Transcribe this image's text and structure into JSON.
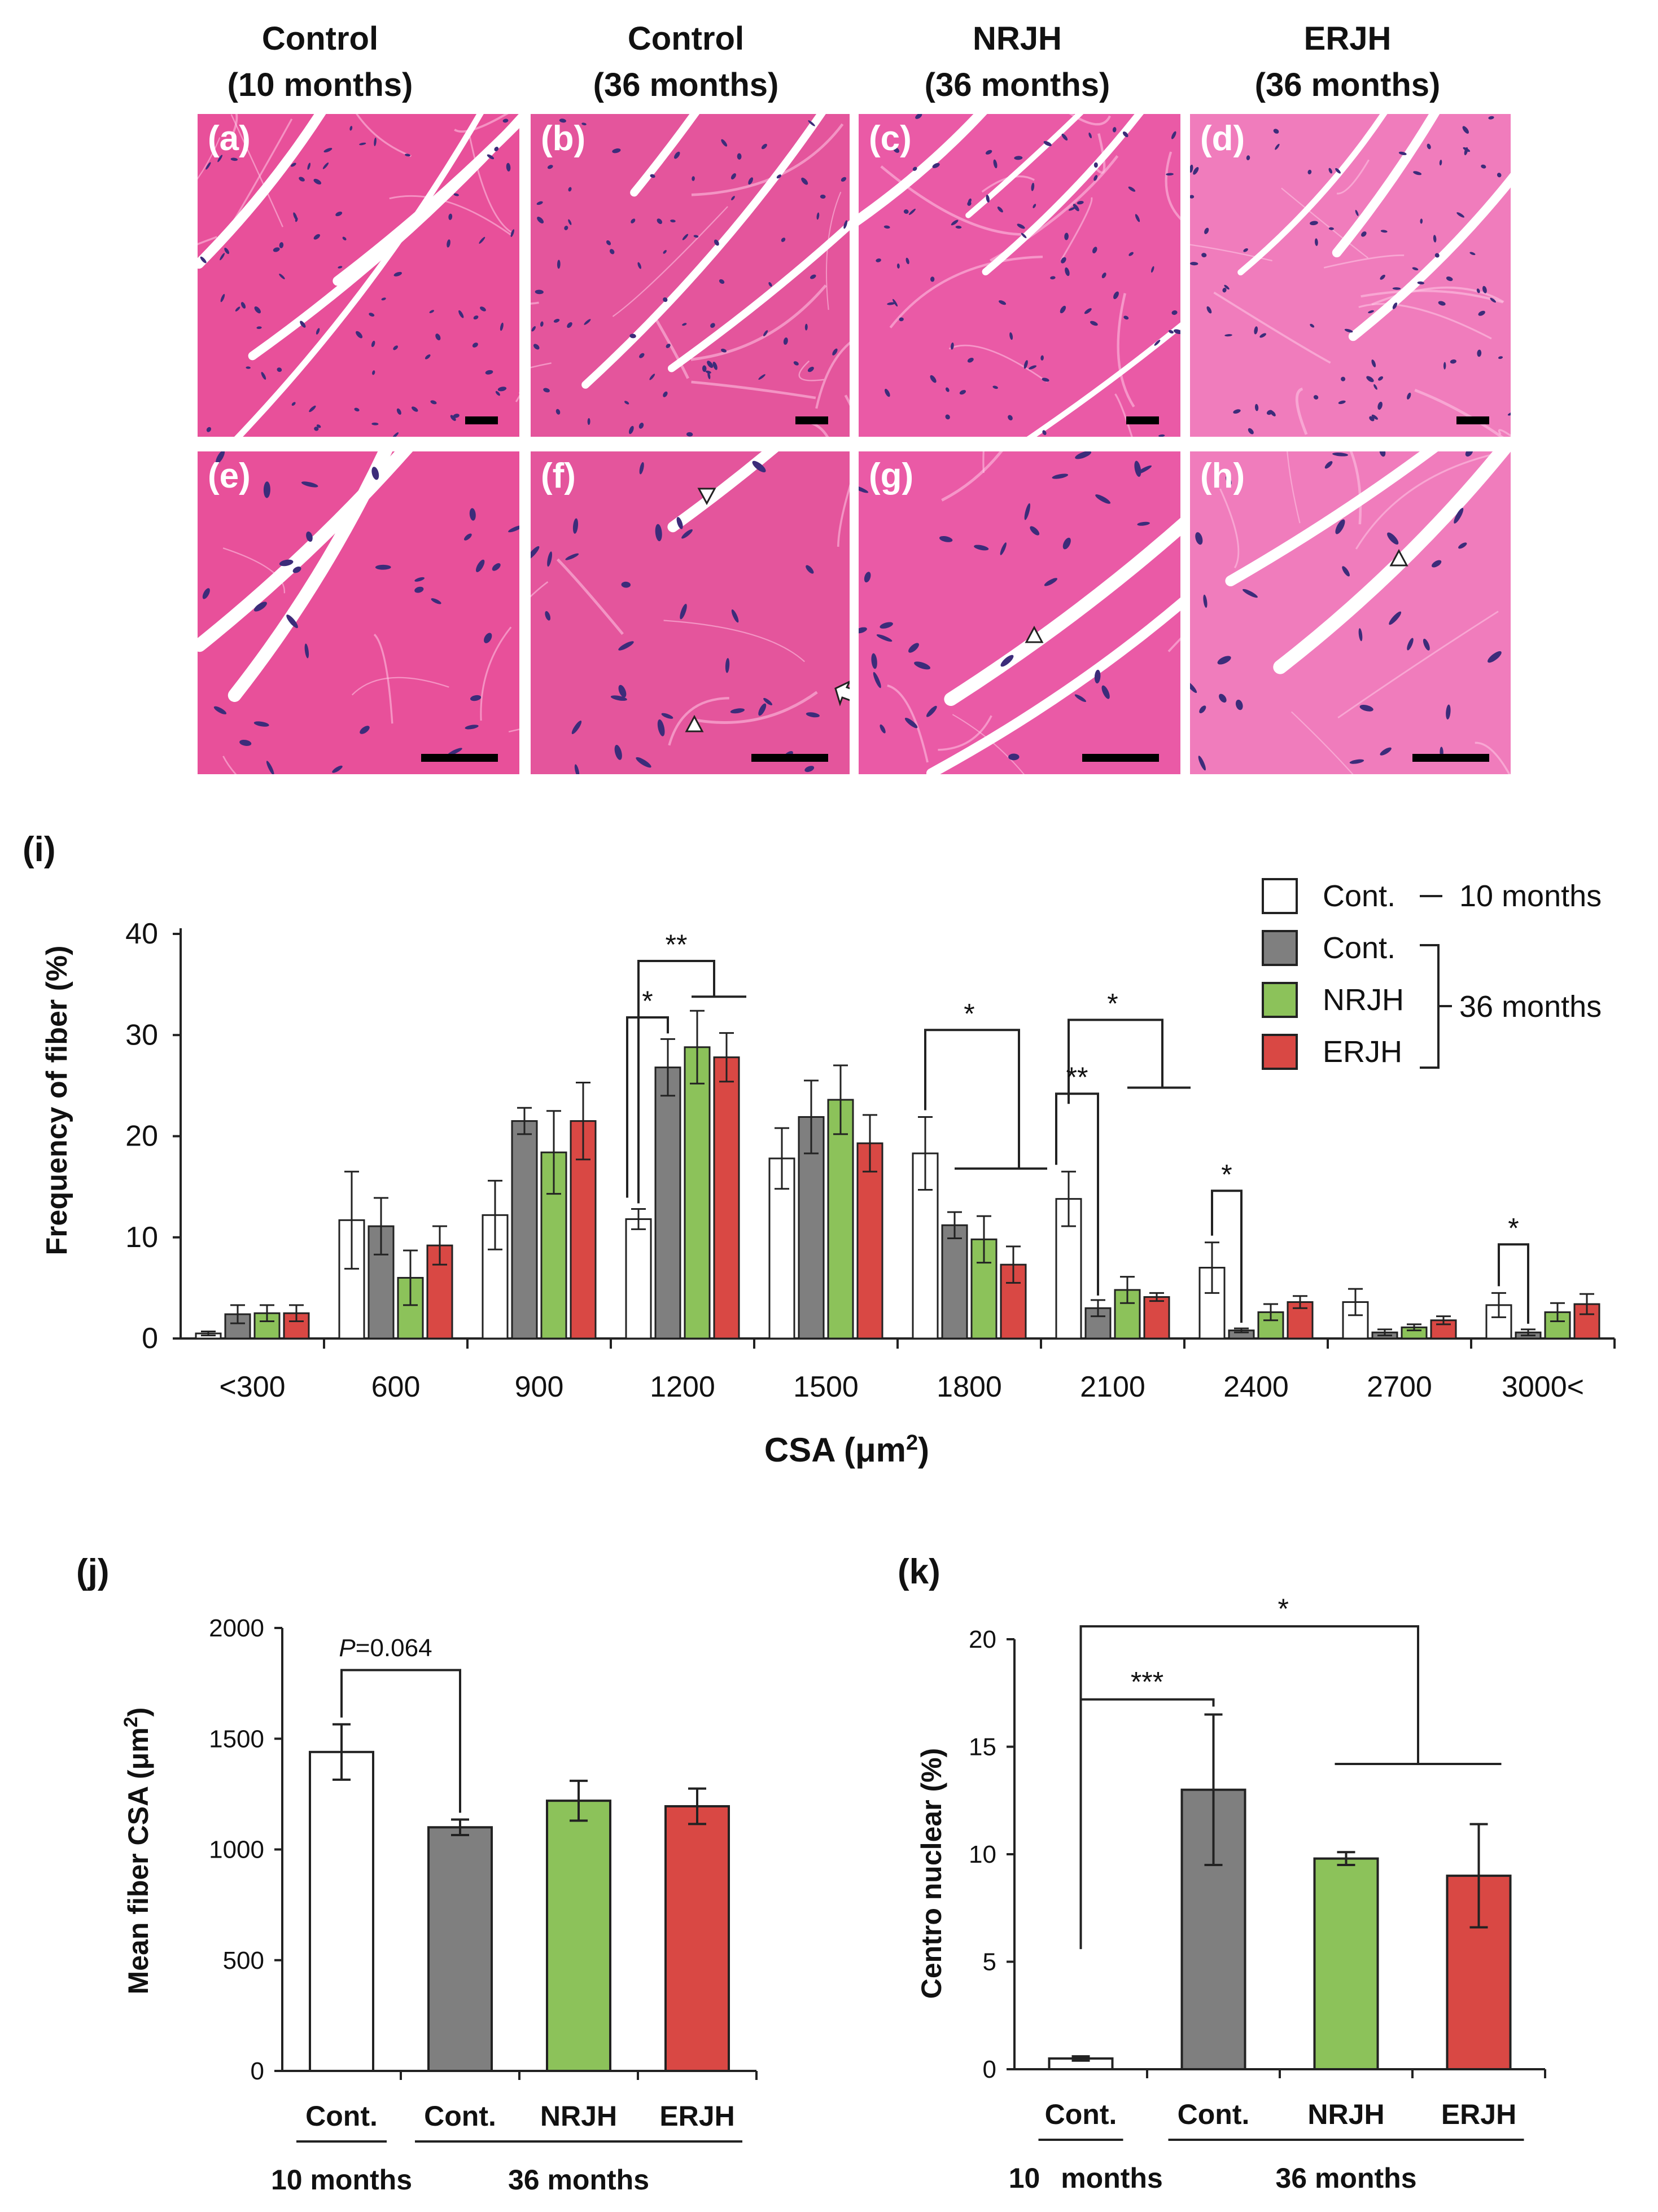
{
  "micrograph_headers": [
    {
      "line1": "Control",
      "line2": "(10 months)"
    },
    {
      "line1": "Control",
      "line2": "(36 months)"
    },
    {
      "line1": "NRJH",
      "line2": "(36 months)"
    },
    {
      "line1": "ERJH",
      "line2": "(36 months)"
    }
  ],
  "micrograph_panels": [
    {
      "label": "(a)",
      "bg": "#e8509a"
    },
    {
      "label": "(b)",
      "bg": "#e4559c"
    },
    {
      "label": "(c)",
      "bg": "#ea5aa6"
    },
    {
      "label": "(d)",
      "bg": "#f07cbc"
    },
    {
      "label": "(e)",
      "bg": "#e8509a"
    },
    {
      "label": "(f)",
      "bg": "#e4559c"
    },
    {
      "label": "(g)",
      "bg": "#ea5aa6"
    },
    {
      "label": "(h)",
      "bg": "#f07cbc"
    }
  ],
  "colors": {
    "cont10": "#ffffff",
    "cont36": "#7f7f7f",
    "nrjh": "#8cc25a",
    "erjh": "#d94844",
    "nucleus": "#3c2c7a"
  },
  "chart_data": [
    {
      "id": "i",
      "panel_label": "(i)",
      "type": "bar",
      "title": "",
      "xlabel": "CSA (μm2)",
      "xlabel_main": "CSA (μm",
      "xlabel_sup": "2",
      "xlabel_end": ")",
      "ylabel": "Frequency of fiber (%)",
      "ylim": [
        0,
        40
      ],
      "yticks": [
        "0",
        "10",
        "20",
        "30",
        "40"
      ],
      "categories": [
        "<300",
        "600",
        "900",
        "1200",
        "1500",
        "1800",
        "2100",
        "2400",
        "2700",
        "3000<"
      ],
      "series": [
        {
          "name": "Cont. 10 months",
          "color": "#ffffff",
          "values": [
            0.5,
            11.7,
            12.2,
            11.8,
            17.8,
            18.3,
            13.8,
            7.0,
            3.6,
            3.3
          ],
          "errors": [
            0.2,
            4.8,
            3.4,
            1.0,
            3.0,
            3.6,
            2.7,
            2.5,
            1.3,
            1.2
          ]
        },
        {
          "name": "Cont. 36 months",
          "color": "#7f7f7f",
          "values": [
            2.4,
            11.1,
            21.5,
            26.8,
            21.9,
            11.2,
            3.0,
            0.8,
            0.6,
            0.6
          ],
          "errors": [
            0.9,
            2.8,
            1.3,
            2.8,
            3.6,
            1.3,
            0.8,
            0.2,
            0.3,
            0.3
          ]
        },
        {
          "name": "NRJH 36 months",
          "color": "#8cc25a",
          "values": [
            2.5,
            6.0,
            18.4,
            28.8,
            23.6,
            9.8,
            4.8,
            2.6,
            1.1,
            2.6
          ],
          "errors": [
            0.8,
            2.7,
            4.1,
            3.6,
            3.4,
            2.3,
            1.3,
            0.8,
            0.3,
            0.9
          ]
        },
        {
          "name": "ERJH 36 months",
          "color": "#d94844",
          "values": [
            2.5,
            9.2,
            21.5,
            27.8,
            19.3,
            7.3,
            4.1,
            3.6,
            1.8,
            3.4
          ],
          "errors": [
            0.8,
            1.9,
            3.8,
            2.4,
            2.8,
            1.8,
            0.4,
            0.6,
            0.4,
            1.0
          ]
        }
      ],
      "legend": {
        "items": [
          "Cont.",
          "Cont.",
          "NRJH",
          "ERJH"
        ],
        "label_10": "10 months",
        "label_36": "36 months",
        "position": "top-right"
      },
      "significance": [
        "**",
        "*",
        "*",
        "*",
        "**",
        "*",
        "*"
      ]
    },
    {
      "id": "j",
      "panel_label": "(j)",
      "type": "bar",
      "xlabel": "",
      "ylabel": "Mean fiber CSA (μm2)",
      "ylabel_main": "Mean fiber CSA (μm",
      "ylabel_sup": "2",
      "ylabel_end": ")",
      "ylim": [
        0,
        2000
      ],
      "yticks": [
        "0",
        "500",
        "1000",
        "1500",
        "2000"
      ],
      "categories": [
        "Cont.",
        "Cont.",
        "NRJH",
        "ERJH"
      ],
      "group_labels": [
        "10 months",
        "36 months"
      ],
      "values": [
        1440,
        1100,
        1220,
        1195
      ],
      "errors": [
        125,
        35,
        90,
        80
      ],
      "colors": [
        "#ffffff",
        "#7f7f7f",
        "#8cc25a",
        "#d94844"
      ],
      "annotation_p": "P",
      "annotation_value": "=0.064"
    },
    {
      "id": "k",
      "panel_label": "(k)",
      "type": "bar",
      "xlabel": "",
      "ylabel": "Centro nuclear (%)",
      "ylim": [
        0,
        20
      ],
      "yticks": [
        "0",
        "5",
        "10",
        "15",
        "20"
      ],
      "categories": [
        "Cont.",
        "Cont.",
        "NRJH",
        "ERJH"
      ],
      "group_labels_left": [
        "10",
        "months"
      ],
      "group_label_right": "36 months",
      "values": [
        0.5,
        13.0,
        9.8,
        9.0
      ],
      "errors": [
        0.1,
        3.5,
        0.3,
        2.4
      ],
      "colors": [
        "#ffffff",
        "#7f7f7f",
        "#8cc25a",
        "#d94844"
      ],
      "significance": [
        "***",
        "*"
      ]
    }
  ]
}
